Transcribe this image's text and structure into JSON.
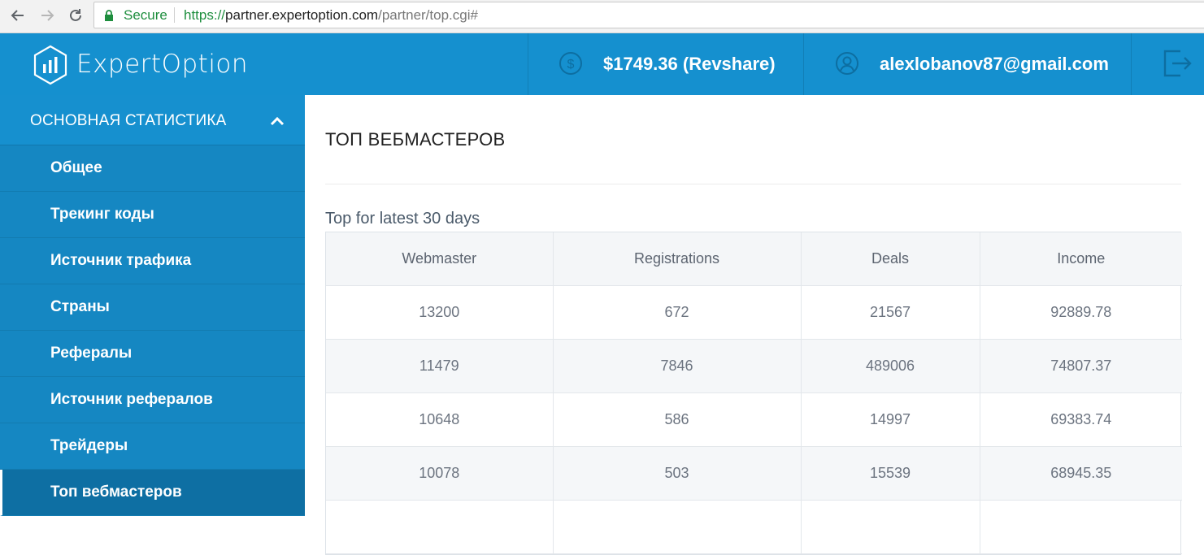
{
  "browser": {
    "secure_label": "Secure",
    "url_scheme": "https://",
    "url_host": "partner.expertoption.com",
    "url_path": "/partner/top.cgi#"
  },
  "header": {
    "brand": "ExpertOption",
    "balance": "$1749.36 (Revshare)",
    "email": "alexlobanov87@gmail.com",
    "icons": [
      "dollar-icon",
      "user-icon",
      "logout-icon"
    ]
  },
  "sidebar": {
    "section_title": "ОСНОВНАЯ СТАТИСТИКА",
    "items": [
      {
        "label": "Общее",
        "active": false
      },
      {
        "label": "Трекинг коды",
        "active": false
      },
      {
        "label": "Источник трафика",
        "active": false
      },
      {
        "label": "Страны",
        "active": false
      },
      {
        "label": "Рефералы",
        "active": false
      },
      {
        "label": "Источник рефералов",
        "active": false
      },
      {
        "label": "Трейдеры",
        "active": false
      },
      {
        "label": "Топ вебмастеров",
        "active": true
      }
    ]
  },
  "main": {
    "title": "ТОП ВЕБМАСТЕРОВ",
    "subtitle": "Top for latest 30 days",
    "table": {
      "columns": [
        "Webmaster",
        "Registrations",
        "Deals",
        "Income"
      ],
      "rows": [
        [
          "13200",
          "672",
          "21567",
          "92889.78"
        ],
        [
          "11479",
          "7846",
          "489006",
          "74807.37"
        ],
        [
          "10648",
          "586",
          "14997",
          "69383.74"
        ],
        [
          "10078",
          "503",
          "15539",
          "68945.35"
        ]
      ]
    }
  },
  "colors": {
    "header_bg": "#1590cf",
    "sidebar_bg": "#1587c2",
    "sidebar_active": "#0e6fa3",
    "secure_green": "#1e8e3e"
  }
}
